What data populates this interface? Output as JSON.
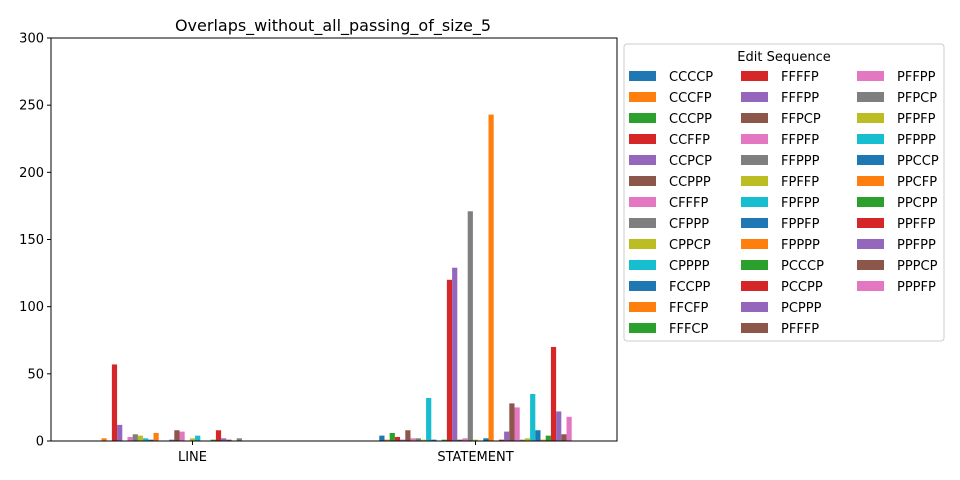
{
  "chart_data": {
    "type": "bar",
    "title": "Overlaps_without_all_passing_of_size_5",
    "xlabel": "",
    "ylabel": "",
    "categories": [
      "LINE",
      "STATEMENT"
    ],
    "ylim": [
      0,
      300
    ],
    "yticks": [
      0,
      50,
      100,
      150,
      200,
      250,
      300
    ],
    "grid": false,
    "legend": {
      "title": "Edit Sequence",
      "placement": "outside-right",
      "columns": 3
    },
    "series": [
      {
        "name": "CCCCP",
        "color": "#1f77b4",
        "values": [
          0,
          4
        ]
      },
      {
        "name": "CCCFP",
        "color": "#ff7f0e",
        "values": [
          2,
          1
        ]
      },
      {
        "name": "CCCPP",
        "color": "#2ca02c",
        "values": [
          0,
          6
        ]
      },
      {
        "name": "CCFFP",
        "color": "#d62728",
        "values": [
          57,
          3
        ]
      },
      {
        "name": "CCPCP",
        "color": "#9467bd",
        "values": [
          12,
          1
        ]
      },
      {
        "name": "CCPPP",
        "color": "#8c564b",
        "values": [
          0,
          8
        ]
      },
      {
        "name": "CFFFP",
        "color": "#e377c2",
        "values": [
          3,
          2
        ]
      },
      {
        "name": "CFPPP",
        "color": "#7f7f7f",
        "values": [
          5,
          2
        ]
      },
      {
        "name": "CPPCP",
        "color": "#bcbd22",
        "values": [
          4,
          1
        ]
      },
      {
        "name": "CPPPP",
        "color": "#17becf",
        "values": [
          2,
          32
        ]
      },
      {
        "name": "FCCPP",
        "color": "#1f77b4",
        "values": [
          1,
          1
        ]
      },
      {
        "name": "FFCFP",
        "color": "#ff7f0e",
        "values": [
          6,
          0
        ]
      },
      {
        "name": "FFFCP",
        "color": "#2ca02c",
        "values": [
          0,
          1
        ]
      },
      {
        "name": "FFFFP",
        "color": "#d62728",
        "values": [
          0,
          120
        ]
      },
      {
        "name": "FFFPP",
        "color": "#9467bd",
        "values": [
          1,
          129
        ]
      },
      {
        "name": "FFPCP",
        "color": "#8c564b",
        "values": [
          8,
          1
        ]
      },
      {
        "name": "FFPFP",
        "color": "#e377c2",
        "values": [
          7,
          2
        ]
      },
      {
        "name": "FFPPP",
        "color": "#7f7f7f",
        "values": [
          0,
          171
        ]
      },
      {
        "name": "FPFFP",
        "color": "#bcbd22",
        "values": [
          2,
          1
        ]
      },
      {
        "name": "FPFPP",
        "color": "#17becf",
        "values": [
          4,
          0
        ]
      },
      {
        "name": "FPPFP",
        "color": "#1f77b4",
        "values": [
          0,
          2
        ]
      },
      {
        "name": "FPPPP",
        "color": "#ff7f0e",
        "values": [
          0,
          243
        ]
      },
      {
        "name": "PCCCP",
        "color": "#2ca02c",
        "values": [
          1,
          0
        ]
      },
      {
        "name": "PCCPP",
        "color": "#d62728",
        "values": [
          8,
          1
        ]
      },
      {
        "name": "PCPPP",
        "color": "#9467bd",
        "values": [
          2,
          7
        ]
      },
      {
        "name": "PFFFP",
        "color": "#8c564b",
        "values": [
          1,
          28
        ]
      },
      {
        "name": "PFFPP",
        "color": "#e377c2",
        "values": [
          0,
          25
        ]
      },
      {
        "name": "PFPCP",
        "color": "#7f7f7f",
        "values": [
          2,
          1
        ]
      },
      {
        "name": "PFPFP",
        "color": "#bcbd22",
        "values": [
          0,
          2
        ]
      },
      {
        "name": "PFPPP",
        "color": "#17becf",
        "values": [
          0,
          35
        ]
      },
      {
        "name": "PPCCP",
        "color": "#1f77b4",
        "values": [
          0,
          8
        ]
      },
      {
        "name": "PPCFP",
        "color": "#ff7f0e",
        "values": [
          0,
          1
        ]
      },
      {
        "name": "PPCPP",
        "color": "#2ca02c",
        "values": [
          0,
          4
        ]
      },
      {
        "name": "PPFFP",
        "color": "#d62728",
        "values": [
          0,
          70
        ]
      },
      {
        "name": "PPFPP",
        "color": "#9467bd",
        "values": [
          0,
          22
        ]
      },
      {
        "name": "PPPCP",
        "color": "#8c564b",
        "values": [
          0,
          5
        ]
      },
      {
        "name": "PPPFP",
        "color": "#e377c2",
        "values": [
          0,
          18
        ]
      }
    ]
  }
}
